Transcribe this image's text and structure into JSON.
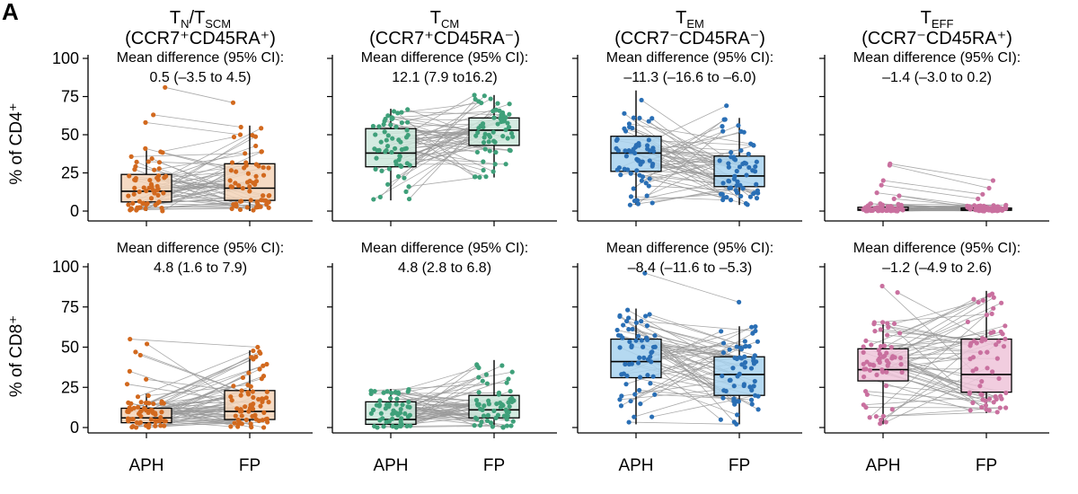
{
  "panel_label": "A",
  "columns": [
    {
      "title_main": "T",
      "title_sub": "N",
      "title_main2": "/T",
      "title_sub2": "SCM",
      "title_line2": "(CCR7⁺CD45RA⁺)"
    },
    {
      "title_main": "T",
      "title_sub": "CM",
      "title_main2": "",
      "title_sub2": "",
      "title_line2": "(CCR7⁺CD45RA⁻)"
    },
    {
      "title_main": "T",
      "title_sub": "EM",
      "title_main2": "",
      "title_sub2": "",
      "title_line2": "(CCR7⁻CD45RA⁻)"
    },
    {
      "title_main": "T",
      "title_sub": "EFF",
      "title_main2": "",
      "title_sub2": "",
      "title_line2": "(CCR7⁻CD45RA⁺)"
    }
  ],
  "rows": [
    {
      "ylabel": "% of CD4⁺"
    },
    {
      "ylabel": "% of CD8⁺"
    }
  ],
  "colors": {
    "orange": "#d2691e",
    "orange_fill": "#f3d3b9",
    "green": "#3fa07a",
    "green_fill": "#cce8dc",
    "blue": "#2a6fb5",
    "blue_fill": "#a8d2ee",
    "pink": "#c9709f",
    "pink_fill": "#efc4d9",
    "line": "#9a9a9a"
  },
  "chart_data": [
    {
      "type": "box-paired",
      "row": 0,
      "col": 0,
      "color": "orange",
      "annotation_title": "Mean difference (95% CI):",
      "annotation_value": "0.5 (–3.5 to 4.5)",
      "categories": [
        "APH",
        "FP"
      ],
      "ylim": [
        0,
        100
      ],
      "yticks": [
        0,
        25,
        50,
        75,
        100
      ],
      "box": {
        "APH": {
          "q1": 6,
          "median": 13,
          "q3": 24,
          "whislo": 0,
          "whishi": 41
        },
        "FP": {
          "q1": 7,
          "median": 15,
          "q3": 31,
          "whislo": 0,
          "whishi": 56
        }
      },
      "extremes": {
        "APH": [
          81,
          63,
          58
        ],
        "FP": [
          71,
          55,
          50
        ]
      }
    },
    {
      "type": "box-paired",
      "row": 0,
      "col": 1,
      "color": "green",
      "annotation_title": "Mean difference (95% CI):",
      "annotation_value": "12.1 (7.9 to16.2)",
      "categories": [
        "APH",
        "FP"
      ],
      "ylim": [
        0,
        100
      ],
      "yticks": [
        0,
        25,
        50,
        75,
        100
      ],
      "box": {
        "APH": {
          "q1": 29,
          "median": 38,
          "q3": 54,
          "whislo": 7,
          "whishi": 67
        },
        "FP": {
          "q1": 43,
          "median": 53,
          "q3": 61,
          "whislo": 22,
          "whishi": 76
        }
      },
      "extremes": {
        "APH": [],
        "FP": []
      }
    },
    {
      "type": "box-paired",
      "row": 0,
      "col": 2,
      "color": "blue",
      "annotation_title": "Mean difference (95% CI):",
      "annotation_value": "–11.3 (–16.6 to –6.0)",
      "categories": [
        "APH",
        "FP"
      ],
      "ylim": [
        0,
        100
      ],
      "yticks": [
        0,
        25,
        50,
        75,
        100
      ],
      "box": {
        "APH": {
          "q1": 26,
          "median": 38,
          "q3": 49,
          "whislo": 4,
          "whishi": 79
        },
        "FP": {
          "q1": 16,
          "median": 23,
          "q3": 36,
          "whislo": 4,
          "whishi": 61
        }
      },
      "extremes": {
        "APH": [],
        "FP": [
          69
        ]
      }
    },
    {
      "type": "box-paired",
      "row": 0,
      "col": 3,
      "color": "pink",
      "annotation_title": "Mean difference (95% CI):",
      "annotation_value": "–1.4 (–3.0 to 0.2)",
      "categories": [
        "APH",
        "FP"
      ],
      "ylim": [
        0,
        100
      ],
      "yticks": [
        0,
        25,
        50,
        75,
        100
      ],
      "box": {
        "APH": {
          "q1": 0.5,
          "median": 1,
          "q3": 2.5,
          "whislo": 0,
          "whishi": 5
        },
        "FP": {
          "q1": 0.5,
          "median": 1,
          "q3": 2,
          "whislo": 0,
          "whishi": 4
        }
      },
      "extremes": {
        "APH": [
          31,
          30,
          20,
          17,
          12,
          10,
          8
        ],
        "FP": [
          20,
          15,
          11,
          8
        ]
      }
    },
    {
      "type": "box-paired",
      "row": 1,
      "col": 0,
      "color": "orange",
      "annotation_title": "Mean difference (95% CI):",
      "annotation_value": "4.8 (1.6 to 7.9)",
      "categories": [
        "APH",
        "FP"
      ],
      "ylim": [
        0,
        100
      ],
      "yticks": [
        0,
        25,
        50,
        75,
        100
      ],
      "box": {
        "APH": {
          "q1": 3,
          "median": 6,
          "q3": 12,
          "whislo": 0,
          "whishi": 21
        },
        "FP": {
          "q1": 5,
          "median": 10,
          "q3": 23,
          "whislo": 0,
          "whishi": 48
        }
      },
      "extremes": {
        "APH": [
          55,
          52,
          47,
          45,
          35,
          30,
          27
        ],
        "FP": [
          50
        ]
      }
    },
    {
      "type": "box-paired",
      "row": 1,
      "col": 1,
      "color": "green",
      "annotation_title": "Mean difference (95% CI):",
      "annotation_value": "4.8 (2.8 to 6.8)",
      "categories": [
        "APH",
        "FP"
      ],
      "ylim": [
        0,
        100
      ],
      "yticks": [
        0,
        25,
        50,
        75,
        100
      ],
      "box": {
        "APH": {
          "q1": 2,
          "median": 5,
          "q3": 16,
          "whislo": 0,
          "whishi": 24
        },
        "FP": {
          "q1": 6,
          "median": 11,
          "q3": 20,
          "whislo": 0,
          "whishi": 42
        }
      },
      "extremes": {
        "APH": [],
        "FP": []
      }
    },
    {
      "type": "box-paired",
      "row": 1,
      "col": 2,
      "color": "blue",
      "annotation_title": "Mean difference (95% CI):",
      "annotation_value": "–8.4 (–11.6 to –5.3)",
      "categories": [
        "APH",
        "FP"
      ],
      "ylim": [
        0,
        100
      ],
      "yticks": [
        0,
        25,
        50,
        75,
        100
      ],
      "box": {
        "APH": {
          "q1": 31,
          "median": 41,
          "q3": 55,
          "whislo": 2,
          "whishi": 74
        },
        "FP": {
          "q1": 20,
          "median": 33,
          "q3": 44,
          "whislo": 2,
          "whishi": 63
        }
      },
      "extremes": {
        "APH": [
          96
        ],
        "FP": [
          78
        ]
      }
    },
    {
      "type": "box-paired",
      "row": 1,
      "col": 3,
      "color": "pink",
      "annotation_title": "Mean difference (95% CI):",
      "annotation_value": "–1.2 (–4.9 to 2.6)",
      "categories": [
        "APH",
        "FP"
      ],
      "ylim": [
        0,
        100
      ],
      "yticks": [
        0,
        25,
        50,
        75,
        100
      ],
      "box": {
        "APH": {
          "q1": 29,
          "median": 36,
          "q3": 49,
          "whislo": 2,
          "whishi": 66
        },
        "FP": {
          "q1": 22,
          "median": 33,
          "q3": 55,
          "whislo": 9,
          "whishi": 85
        }
      },
      "extremes": {
        "APH": [
          88,
          84
        ],
        "FP": []
      }
    }
  ]
}
